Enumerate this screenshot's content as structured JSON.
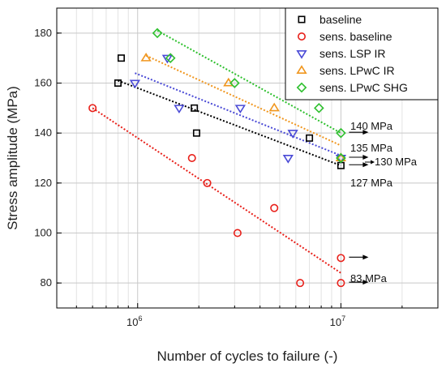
{
  "chart_data": {
    "type": "scatter",
    "xlabel": "Number of cycles to failure (-)",
    "ylabel": "Stress amplitude (MPa)",
    "xscale": "log",
    "xlim": [
      400000,
      30000000
    ],
    "ylim": [
      70,
      190
    ],
    "x_major_ticks": [
      {
        "value": 1000000,
        "base": "10",
        "exp": "6"
      },
      {
        "value": 10000000,
        "base": "10",
        "exp": "7"
      }
    ],
    "y_ticks": [
      80,
      100,
      120,
      140,
      160,
      180
    ],
    "grid": true,
    "legend_position": "top-right",
    "series": [
      {
        "name": "baseline",
        "marker": "square",
        "color": "#000000",
        "points": [
          [
            800000,
            160
          ],
          [
            830000,
            170
          ],
          [
            1900000,
            150
          ],
          [
            1950000,
            140
          ],
          [
            7000000,
            138
          ],
          [
            10000000,
            127
          ]
        ],
        "fit": [
          [
            800000,
            161
          ],
          [
            10000000,
            127
          ]
        ]
      },
      {
        "name": "sens. baseline",
        "marker": "circle",
        "color": "#e8201a",
        "points": [
          [
            600000,
            150
          ],
          [
            1850000,
            130
          ],
          [
            2200000,
            120
          ],
          [
            3100000,
            100
          ],
          [
            4700000,
            110
          ],
          [
            6300000,
            80
          ],
          [
            10000000,
            90
          ],
          [
            10000000,
            80
          ]
        ],
        "fit": [
          [
            600000,
            150
          ],
          [
            10000000,
            84
          ]
        ]
      },
      {
        "name": "sens. LSP IR",
        "marker": "triangle-down",
        "color": "#4a4ad6",
        "points": [
          [
            970000,
            160
          ],
          [
            1400000,
            170
          ],
          [
            1600000,
            150
          ],
          [
            3200000,
            150
          ],
          [
            5500000,
            130
          ],
          [
            5800000,
            140
          ],
          [
            10000000,
            130
          ]
        ],
        "fit": [
          [
            970000,
            164
          ],
          [
            10000000,
            131
          ]
        ]
      },
      {
        "name": "sens. LPwC IR",
        "marker": "triangle-up",
        "color": "#f0961e",
        "points": [
          [
            1100000,
            170
          ],
          [
            2800000,
            160
          ],
          [
            4700000,
            150
          ],
          [
            10000000,
            130
          ]
        ],
        "fit": [
          [
            1100000,
            171
          ],
          [
            10000000,
            135
          ]
        ]
      },
      {
        "name": "sens. LPwC SHG",
        "marker": "diamond",
        "color": "#2ec02e",
        "points": [
          [
            1250000,
            180
          ],
          [
            1450000,
            170
          ],
          [
            3000000,
            160
          ],
          [
            7800000,
            150
          ],
          [
            10000000,
            140
          ],
          [
            10000000,
            130
          ]
        ],
        "fit": [
          [
            1250000,
            181
          ],
          [
            10000000,
            140
          ]
        ]
      }
    ],
    "annotations": [
      {
        "text": "140 MPa",
        "y": 140
      },
      {
        "text": "135 MPa",
        "y": 135
      },
      {
        "text": "130 MPa",
        "y": 130
      },
      {
        "text": "127 MPa",
        "y": 127
      },
      {
        "text": "83 MPa",
        "y": 83
      }
    ],
    "runout_arrows": [
      {
        "x": 10000000,
        "y": 140
      },
      {
        "x": 10000000,
        "y": 130
      },
      {
        "x": 10000000,
        "y": 127
      },
      {
        "x": 10000000,
        "y": 90
      },
      {
        "x": 10000000,
        "y": 80
      }
    ]
  }
}
